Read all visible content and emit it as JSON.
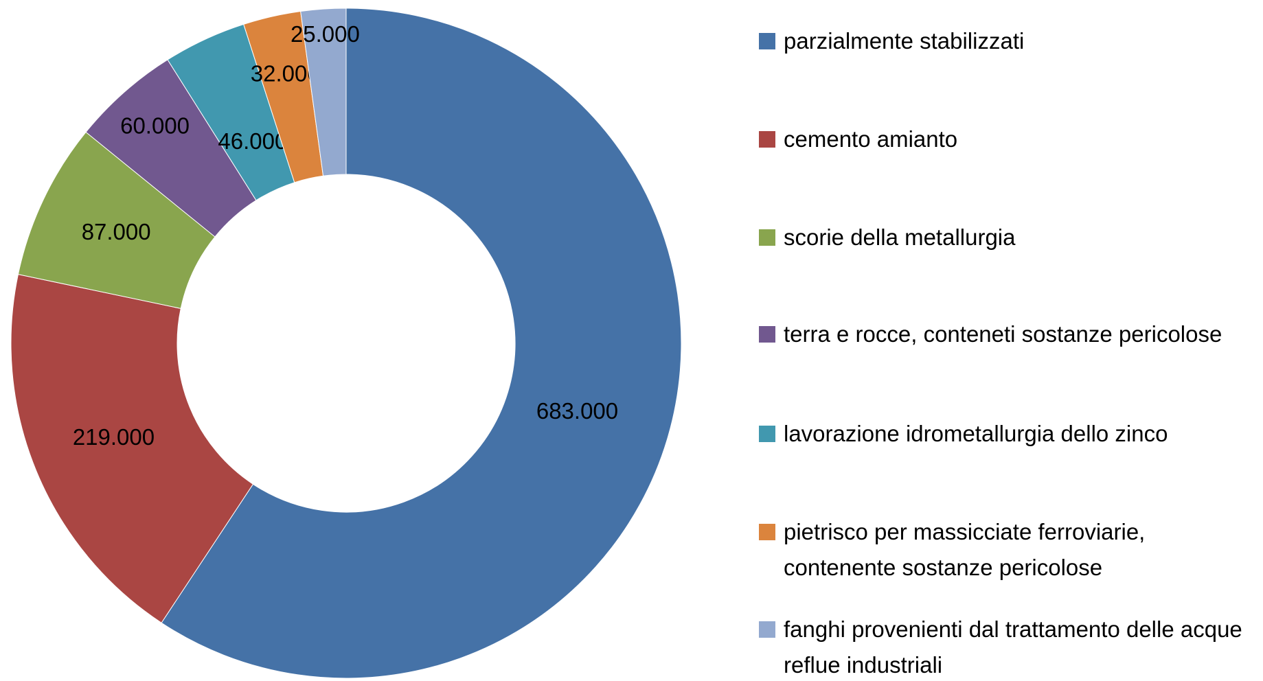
{
  "chart_data": {
    "type": "donut",
    "categories": [
      "parzialmente stabilizzati",
      "cemento amianto",
      "scorie della metallurgia",
      "terra e rocce, conteneti sostanze pericolose",
      "lavorazione idrometallurgia dello zinco",
      "pietrisco per massicciate ferroviarie, contenente sostanze pericolose",
      "fanghi provenienti dal trattamento delle acque reflue industriali"
    ],
    "values": [
      683000,
      219000,
      87000,
      60000,
      46000,
      32000,
      25000
    ],
    "value_labels": [
      "683.000",
      "219.000",
      "87.000",
      "60.000",
      "46.000",
      "32.000",
      "25.000"
    ],
    "colors": [
      "#4572a7",
      "#aa4643",
      "#89a54e",
      "#71588f",
      "#4198af",
      "#db843d",
      "#93a9cf"
    ],
    "legend": "right"
  }
}
